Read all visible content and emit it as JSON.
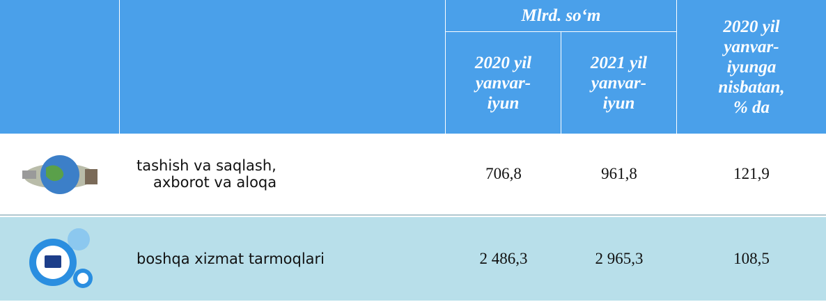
{
  "header": {
    "unit": "Mlrd. so‘m",
    "col2020": [
      "2020 yil",
      "yanvar-",
      "iyun"
    ],
    "col2021": [
      "2021 yil",
      "yanvar-",
      "iyun"
    ],
    "ratio": [
      "2020 yil",
      "yanvar-",
      "iyunga",
      "nisbatan,",
      "% da"
    ]
  },
  "table": {
    "rows": [
      {
        "name": [
          "tashish va saqlash,",
          "axborot va aloqa"
        ],
        "v2020": "706,8",
        "v2021": "961,8",
        "ratio": "121,9"
      },
      {
        "name": [
          "boshqa xizmat tarmoqlari"
        ],
        "v2020": "2 486,3",
        "v2021": "2 965,3",
        "ratio": "108,5"
      }
    ]
  }
}
